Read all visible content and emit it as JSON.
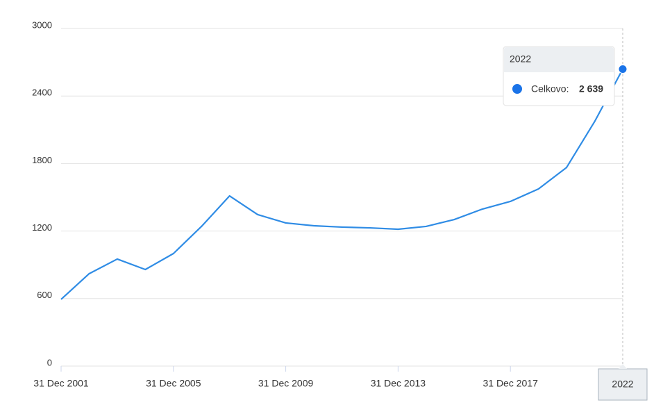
{
  "chart_data": {
    "type": "line",
    "x": [
      2001,
      2002,
      2003,
      2004,
      2005,
      2006,
      2007,
      2008,
      2009,
      2010,
      2011,
      2012,
      2013,
      2014,
      2015,
      2016,
      2017,
      2018,
      2019,
      2020,
      2021
    ],
    "series": [
      {
        "name": "Celkovo:",
        "color": "#2f8ce5",
        "values": [
          593,
          821,
          951,
          858,
          1000,
          1241,
          1512,
          1346,
          1272,
          1247,
          1235,
          1228,
          1216,
          1241,
          1302,
          1395,
          1463,
          1574,
          1765,
          2173,
          2639
        ]
      }
    ],
    "xlim": [
      2001,
      2021
    ],
    "xticks": [
      {
        "value": 2001,
        "label": "31 Dec 2001"
      },
      {
        "value": 2005,
        "label": "31 Dec 2005"
      },
      {
        "value": 2009,
        "label": "31 Dec 2009"
      },
      {
        "value": 2013,
        "label": "31 Dec 2013"
      },
      {
        "value": 2017,
        "label": "31 Dec 2017"
      }
    ],
    "ylim": [
      0,
      3000
    ],
    "yticks": [
      0,
      600,
      1200,
      1800,
      2400,
      3000
    ],
    "grid": true,
    "tooltip": {
      "title": "2022",
      "value_label": "2 639"
    }
  }
}
